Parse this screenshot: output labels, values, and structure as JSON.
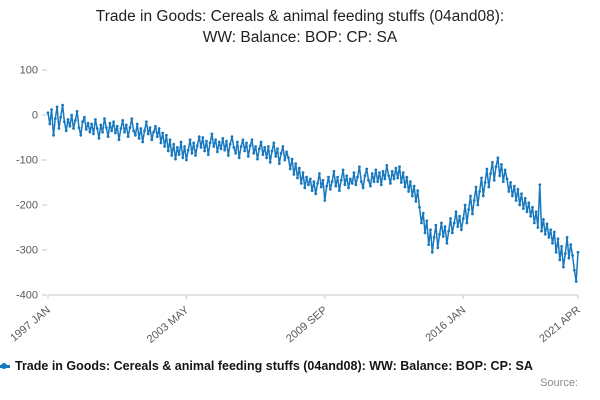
{
  "header": {
    "title_line1": "Trade in Goods: Cereals & animal feeding stuffs (04and08):",
    "title_line2": "WW: Balance: BOP: CP: SA"
  },
  "legend": {
    "label": "Trade in Goods: Cereals & animal feeding stuffs (04and08): WW: Balance: BOP: CP: SA"
  },
  "footer": {
    "source_label": "Source:"
  },
  "chart_data": {
    "type": "line",
    "title": "Trade in Goods: Cereals & animal feeding stuffs (04and08): WW: Balance: BOP: CP: SA",
    "xlabel": "",
    "ylabel": "",
    "x_unit": "month",
    "x_range": [
      "1997 JAN",
      "2021 APR"
    ],
    "ylim": [
      -400,
      100
    ],
    "y_ticks": [
      100,
      0,
      -100,
      -200,
      -300,
      -400
    ],
    "x_ticks": [
      {
        "label": "1997 JAN",
        "month_index": 0
      },
      {
        "label": "2003 MAY",
        "month_index": 76
      },
      {
        "label": "2009 SEP",
        "month_index": 152
      },
      {
        "label": "2016 JAN",
        "month_index": 228
      },
      {
        "label": "2021 APR",
        "month_index": 291
      }
    ],
    "line_color": "#1878be",
    "axis_color": "#c9c9c9",
    "tick_label_color": "#595959",
    "marker": "dot",
    "grid": false,
    "legend_position": "bottom-left",
    "values": [
      5,
      -20,
      12,
      -45,
      -8,
      18,
      -30,
      -5,
      22,
      -15,
      -35,
      -10,
      -25,
      0,
      -30,
      -12,
      8,
      -28,
      -45,
      -15,
      -5,
      -32,
      -18,
      -38,
      -20,
      -42,
      -10,
      -30,
      -52,
      -22,
      -38,
      -8,
      -28,
      -48,
      -18,
      -35,
      -15,
      -40,
      -25,
      -55,
      -30,
      -12,
      -38,
      -22,
      -48,
      -28,
      -8,
      -35,
      -45,
      -20,
      -52,
      -30,
      -60,
      -35,
      -15,
      -42,
      -28,
      -55,
      -38,
      -25,
      -48,
      -30,
      -62,
      -40,
      -70,
      -45,
      -80,
      -55,
      -90,
      -65,
      -98,
      -72,
      -88,
      -60,
      -95,
      -70,
      -100,
      -78,
      -55,
      -85,
      -62,
      -90,
      -68,
      -48,
      -72,
      -50,
      -80,
      -58,
      -88,
      -62,
      -42,
      -70,
      -55,
      -82,
      -60,
      -75,
      -52,
      -78,
      -58,
      -90,
      -65,
      -48,
      -72,
      -85,
      -60,
      -95,
      -70,
      -55,
      -80,
      -62,
      -92,
      -68,
      -55,
      -85,
      -70,
      -98,
      -75,
      -60,
      -88,
      -72,
      -95,
      -70,
      -105,
      -80,
      -62,
      -92,
      -75,
      -108,
      -85,
      -70,
      -100,
      -82,
      -95,
      -120,
      -98,
      -132,
      -108,
      -140,
      -118,
      -152,
      -128,
      -162,
      -138,
      -155,
      -142,
      -168,
      -148,
      -175,
      -152,
      -130,
      -160,
      -145,
      -190,
      -158,
      -138,
      -165,
      -148,
      -125,
      -158,
      -138,
      -168,
      -145,
      -122,
      -155,
      -135,
      -162,
      -142,
      -152,
      -128,
      -155,
      -138,
      -115,
      -148,
      -162,
      -135,
      -120,
      -145,
      -158,
      -130,
      -148,
      -122,
      -148,
      -128,
      -155,
      -125,
      -142,
      -112,
      -135,
      -152,
      -125,
      -142,
      -118,
      -140,
      -115,
      -150,
      -128,
      -160,
      -138,
      -170,
      -148,
      -180,
      -158,
      -192,
      -168,
      -205,
      -240,
      -218,
      -262,
      -235,
      -288,
      -255,
      -305,
      -272,
      -245,
      -295,
      -265,
      -240,
      -270,
      -248,
      -285,
      -258,
      -230,
      -262,
      -240,
      -215,
      -248,
      -225,
      -255,
      -230,
      -200,
      -240,
      -210,
      -180,
      -220,
      -190,
      -160,
      -200,
      -170,
      -140,
      -180,
      -150,
      -120,
      -160,
      -130,
      -105,
      -145,
      -115,
      -95,
      -135,
      -110,
      -148,
      -122,
      -142,
      -170,
      -150,
      -180,
      -158,
      -190,
      -165,
      -200,
      -175,
      -208,
      -185,
      -215,
      -195,
      -225,
      -205,
      -240,
      -215,
      -250,
      -155,
      -258,
      -232,
      -265,
      -242,
      -272,
      -255,
      -285,
      -260,
      -305,
      -275,
      -322,
      -292,
      -338,
      -308,
      -272,
      -318,
      -288,
      -312,
      -345,
      -370,
      -305
    ]
  }
}
